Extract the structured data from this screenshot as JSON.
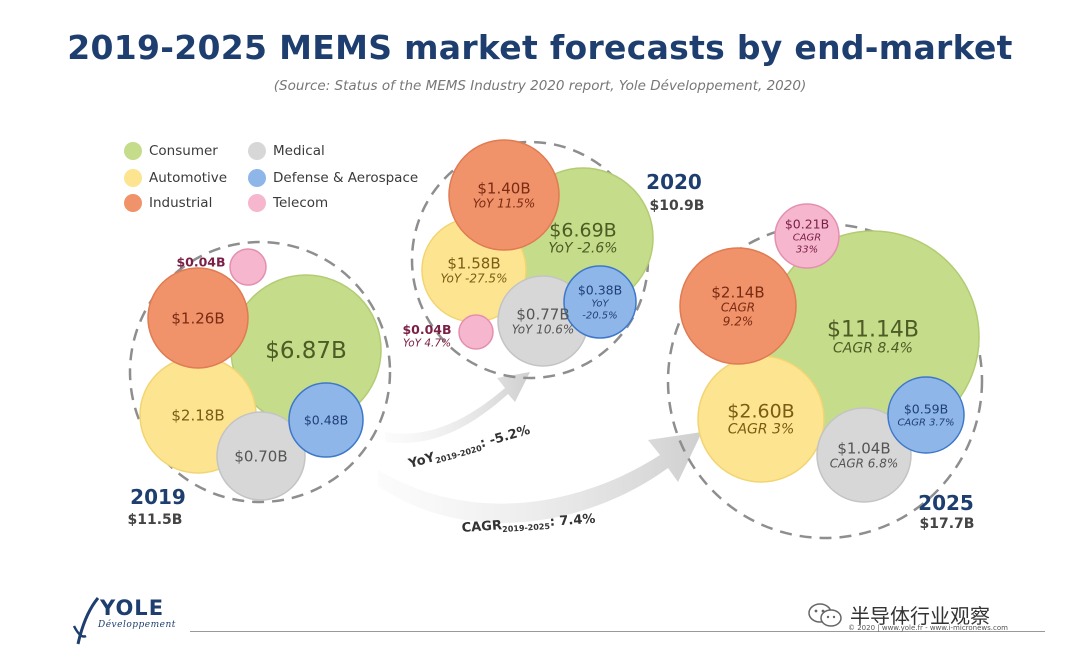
{
  "title": "2019-2025 MEMS market forecasts by end-market",
  "subtitle": "(Source: Status of the MEMS Industry 2020 report, Yole Développement, 2020)",
  "legend": [
    {
      "label": "Consumer",
      "color": "#c5dc8a"
    },
    {
      "label": "Automotive",
      "color": "#fde491"
    },
    {
      "label": "Industrial",
      "color": "#f0926a"
    },
    {
      "label": "Medical",
      "color": "#d7d7d7"
    },
    {
      "label": "Defense & Aerospace",
      "color": "#8fb6e8"
    },
    {
      "label": "Telecom",
      "color": "#f6b6cd"
    }
  ],
  "chart_data": {
    "type": "bubble",
    "groups": [
      {
        "year": "2019",
        "total": "$11.5B",
        "segments": [
          {
            "category": "Consumer",
            "value": 6.87,
            "label": "$6.87B",
            "sub": ""
          },
          {
            "category": "Automotive",
            "value": 2.18,
            "label": "$2.18B",
            "sub": ""
          },
          {
            "category": "Industrial",
            "value": 1.26,
            "label": "$1.26B",
            "sub": ""
          },
          {
            "category": "Medical",
            "value": 0.7,
            "label": "$0.70B",
            "sub": ""
          },
          {
            "category": "Defense & Aerospace",
            "value": 0.48,
            "label": "$0.48B",
            "sub": ""
          },
          {
            "category": "Telecom",
            "value": 0.04,
            "label": "$0.04B",
            "sub": ""
          }
        ]
      },
      {
        "year": "2020",
        "total": "$10.9B",
        "segments": [
          {
            "category": "Consumer",
            "value": 6.69,
            "label": "$6.69B",
            "sub": "YoY -2.6%"
          },
          {
            "category": "Industrial",
            "value": 1.4,
            "label": "$1.40B",
            "sub": "YoY 11.5%"
          },
          {
            "category": "Automotive",
            "value": 1.58,
            "label": "$1.58B",
            "sub": "YoY -27.5%"
          },
          {
            "category": "Medical",
            "value": 0.77,
            "label": "$0.77B",
            "sub": "YoY 10.6%"
          },
          {
            "category": "Defense & Aerospace",
            "value": 0.38,
            "label": "$0.38B",
            "sub": "YoY -20.5%"
          },
          {
            "category": "Telecom",
            "value": 0.04,
            "label": "$0.04B",
            "sub": "YoY 4.7%"
          }
        ]
      },
      {
        "year": "2025",
        "total": "$17.7B",
        "segments": [
          {
            "category": "Consumer",
            "value": 11.14,
            "label": "$11.14B",
            "sub": "CAGR 8.4%"
          },
          {
            "category": "Industrial",
            "value": 2.14,
            "label": "$2.14B",
            "sub": "CAGR 9.2%"
          },
          {
            "category": "Automotive",
            "value": 2.6,
            "label": "$2.60B",
            "sub": "CAGR 3%"
          },
          {
            "category": "Medical",
            "value": 1.04,
            "label": "$1.04B",
            "sub": "CAGR 6.8%"
          },
          {
            "category": "Defense & Aerospace",
            "value": 0.59,
            "label": "$0.59B",
            "sub": "CAGR 3.7%"
          },
          {
            "category": "Telecom",
            "value": 0.21,
            "label": "$0.21B",
            "sub": "CAGR 33%"
          }
        ]
      }
    ],
    "arrows": [
      {
        "label": "YoY",
        "sub": "2019-2020",
        "value": ": -5.2%"
      },
      {
        "label": "CAGR",
        "sub": "2019-2025",
        "value": ": 7.4%"
      }
    ]
  },
  "logo": {
    "name": "YOLE",
    "sub": "Développement"
  },
  "copyright": "© 2020 | www.yole.fr - www.i-micronews.com",
  "watermark": "半导体行业观察"
}
